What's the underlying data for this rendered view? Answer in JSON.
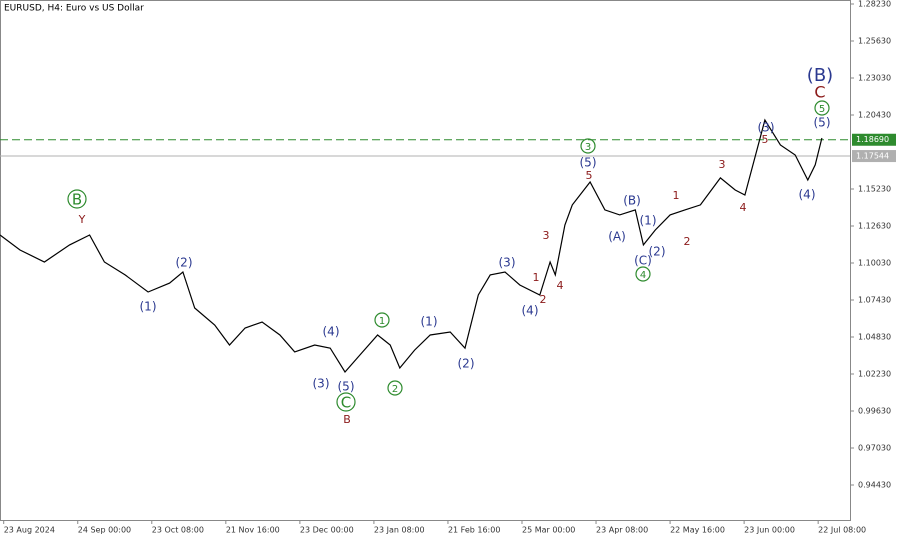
{
  "chart_data": {
    "type": "line",
    "title": "EURUSD, H4:  Euro vs US Dollar",
    "series": [
      {
        "color": "#000000",
        "x": [
          -0.05,
          0.22,
          0.55,
          0.89,
          1.16,
          1.36,
          1.64,
          1.95,
          2.24,
          2.42,
          2.58,
          2.85,
          3.05,
          3.26,
          3.49,
          3.73,
          3.93,
          4.2,
          4.41,
          4.61,
          4.81,
          5.05,
          5.22,
          5.35,
          5.55,
          5.76,
          6.03,
          6.23,
          6.41,
          6.57,
          6.77,
          6.97,
          7.24,
          7.38,
          7.45,
          7.58,
          7.68,
          7.92,
          8.12,
          8.32,
          8.53,
          8.64,
          8.8,
          9.0,
          9.2,
          9.41,
          9.68,
          9.88,
          10.01,
          10.28,
          10.49,
          10.69,
          10.86,
          10.96,
          11.05
        ],
        "values": [
          1.12,
          1.1094,
          1.101,
          1.113,
          1.12,
          1.101,
          1.0919,
          1.0799,
          1.0862,
          1.094,
          1.0687,
          1.0567,
          1.0427,
          1.0546,
          1.0588,
          1.0497,
          1.0378,
          1.0427,
          1.0405,
          1.0237,
          1.0356,
          1.0497,
          1.0427,
          1.0265,
          1.0391,
          1.0497,
          1.0518,
          1.0405,
          1.0778,
          1.0919,
          1.094,
          1.0848,
          1.0778,
          1.101,
          1.0919,
          1.127,
          1.1411,
          1.1572,
          1.1376,
          1.1341,
          1.1376,
          1.113,
          1.1235,
          1.1341,
          1.1376,
          1.1411,
          1.1601,
          1.1516,
          1.1481,
          1.2008,
          1.1832,
          1.1762,
          1.1586,
          1.1692,
          1.1881
        ]
      }
    ],
    "xlim": [
      -0.05,
      11.43
    ],
    "xticks": [
      {
        "value": 0,
        "label": "23 Aug 2024"
      },
      {
        "value": 1,
        "label": "24 Sep 00:00"
      },
      {
        "value": 2,
        "label": "23 Oct 08:00"
      },
      {
        "value": 3,
        "label": "21 Nov 16:00"
      },
      {
        "value": 4,
        "label": "23 Dec 00:00"
      },
      {
        "value": 5,
        "label": "23 Jan 08:00"
      },
      {
        "value": 6,
        "label": "21 Feb 16:00"
      },
      {
        "value": 7,
        "label": "25 Mar 00:00"
      },
      {
        "value": 8,
        "label": "23 Apr 08:00"
      },
      {
        "value": 9,
        "label": "22 May 16:00"
      },
      {
        "value": 10,
        "label": "23 Jun 00:00"
      },
      {
        "value": 11,
        "label": "22 Jul 08:00"
      }
    ],
    "ylim": [
      0.9197,
      1.2851
    ],
    "yticks": [
      {
        "value": 1.2823,
        "label": "1.28230"
      },
      {
        "value": 1.2563,
        "label": "1.25630"
      },
      {
        "value": 1.2303,
        "label": "1.23030"
      },
      {
        "value": 1.2043,
        "label": "1.20430"
      },
      {
        "value": 1.1523,
        "label": "1.15230"
      },
      {
        "value": 1.1263,
        "label": "1.12630"
      },
      {
        "value": 1.1003,
        "label": "1.10030"
      },
      {
        "value": 1.0743,
        "label": "1.07430"
      },
      {
        "value": 1.0483,
        "label": "1.04830"
      },
      {
        "value": 1.0223,
        "label": "1.02230"
      },
      {
        "value": 0.9963,
        "label": "0.99630"
      },
      {
        "value": 0.9703,
        "label": "0.97030"
      },
      {
        "value": 0.9443,
        "label": "0.94430"
      }
    ],
    "levels": [
      {
        "value": 1.1869,
        "label": "1.18690",
        "color": "#2e8b2e",
        "dashed": true
      },
      {
        "value": 1.17544,
        "label": "1.17544",
        "color": "#b0b0b0",
        "dashed": false
      }
    ],
    "annotations": [
      "B",
      "Y",
      "(1)",
      "(2)",
      "(3)",
      "(4)",
      "(5)",
      "C",
      "B",
      "1",
      "2",
      "(1)",
      "(2)",
      "(3)",
      "(4)",
      "1",
      "2",
      "3",
      "4",
      "5",
      "(5)",
      "3",
      "(B)",
      "(A)",
      "(1)",
      "(2)",
      "(C)",
      "4",
      "1",
      "2",
      "3",
      "4",
      "(3)",
      "5",
      "(4)",
      "(5)",
      "5",
      "C",
      "(B)"
    ]
  }
}
